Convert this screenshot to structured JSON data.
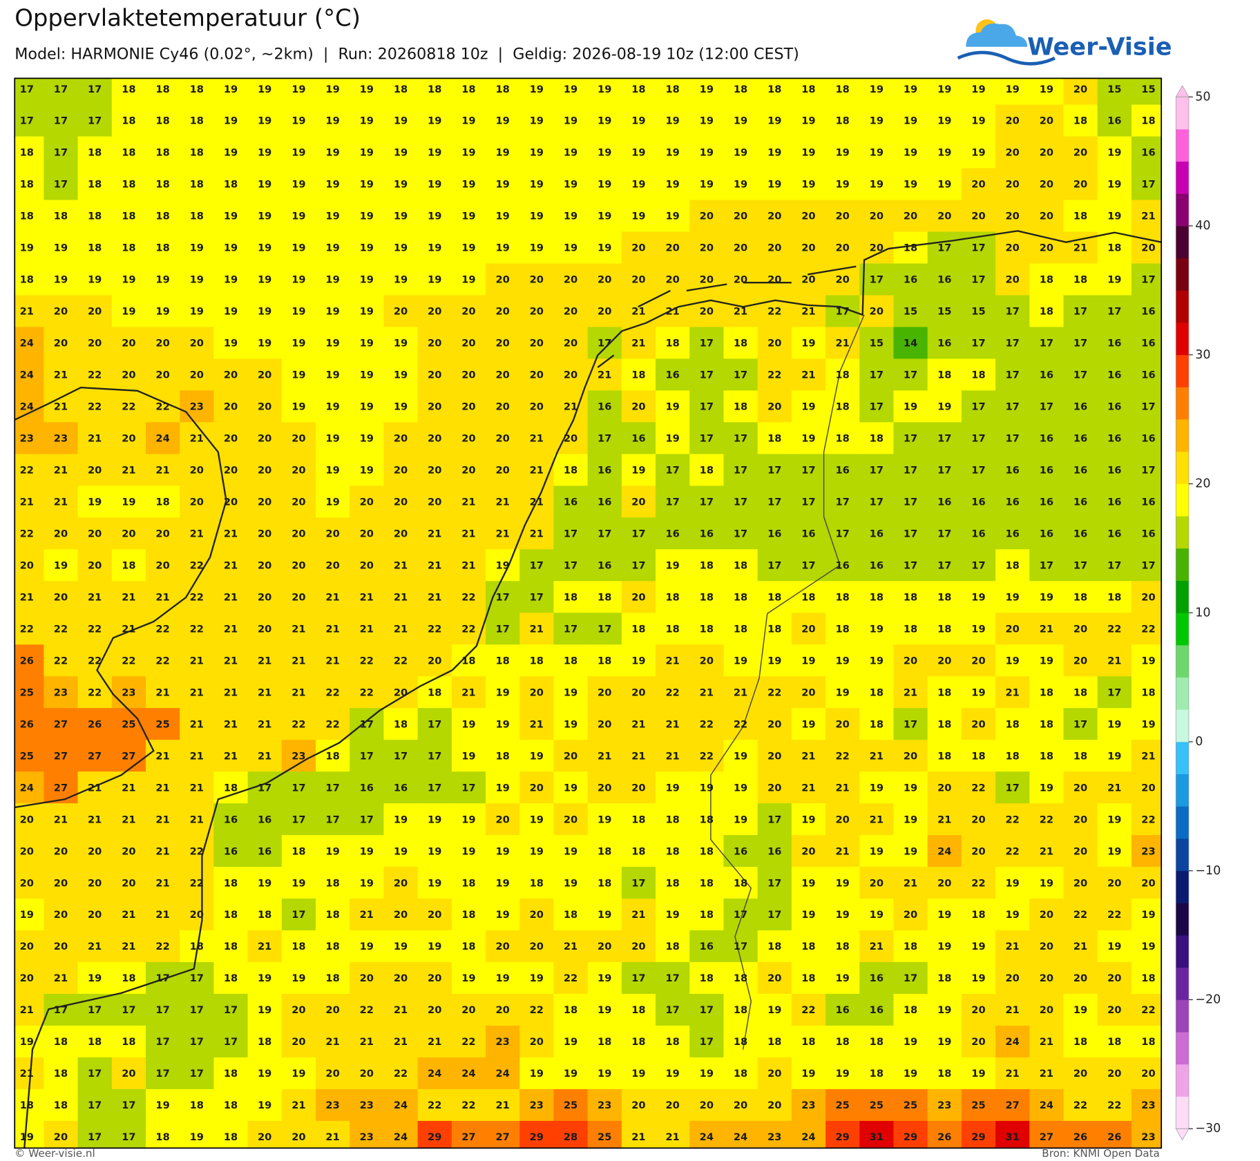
{
  "header": {
    "title": "Oppervlaktetemperatuur (°C)",
    "subtitle": "Model: HARMONIE Cy46 (0.02°, ~2km)  |  Run: 20260818 10z  |  Geldig: 2026-08-19 10z (12:00 CEST)",
    "logo": "Weer-Visie"
  },
  "footer": {
    "left": "© Weer-visie.nl",
    "right": "Bron: KNMI Open Data"
  },
  "colorbar": {
    "range": [
      -30,
      50
    ],
    "ticks": [
      50,
      40,
      30,
      20,
      10,
      0,
      {
        "value": -10,
        "label": "−10"
      },
      {
        "value": -20,
        "label": "−20"
      },
      {
        "value": -30,
        "label": "−30"
      }
    ],
    "colors": [
      "#fcdcf6",
      "#f0a4e8",
      "#cc6cd4",
      "#9c44b8",
      "#6a24a0",
      "#3a1080",
      "#1a0648",
      "#0a1a70",
      "#0a44a0",
      "#0a6cc4",
      "#1a9ae0",
      "#38c0f8",
      "#c8f8e0",
      "#a0ecb0",
      "#6cd86c",
      "#00c800",
      "#00a000",
      "#48b400",
      "#b4d800",
      "#ffff00",
      "#ffe000",
      "#ffb400",
      "#ff8000",
      "#ff4000",
      "#e00000",
      "#b00000",
      "#780010",
      "#4a0030",
      "#8a0070",
      "#c800b4",
      "#ff60dc",
      "#ffc0ec"
    ]
  },
  "grid": {
    "rows": [
      [
        17,
        17,
        17,
        18,
        18,
        18,
        19,
        19,
        19,
        19,
        19,
        18,
        18,
        18,
        18,
        19,
        19,
        19,
        18,
        18,
        19,
        18,
        18,
        18,
        18,
        19,
        19,
        19,
        19,
        19,
        19,
        20,
        15,
        15
      ],
      [
        17,
        17,
        17,
        18,
        18,
        18,
        19,
        19,
        19,
        19,
        19,
        19,
        19,
        19,
        19,
        19,
        19,
        19,
        19,
        19,
        19,
        19,
        19,
        19,
        18,
        19,
        19,
        19,
        19,
        20,
        20,
        18,
        16,
        18
      ],
      [
        18,
        17,
        18,
        18,
        18,
        18,
        19,
        19,
        19,
        19,
        19,
        19,
        19,
        19,
        19,
        19,
        19,
        19,
        19,
        19,
        19,
        19,
        19,
        19,
        19,
        19,
        19,
        19,
        19,
        20,
        20,
        20,
        19,
        16
      ],
      [
        18,
        17,
        18,
        18,
        18,
        18,
        18,
        19,
        19,
        19,
        19,
        19,
        19,
        19,
        19,
        19,
        19,
        19,
        19,
        19,
        19,
        19,
        19,
        19,
        19,
        19,
        19,
        19,
        20,
        20,
        20,
        20,
        19,
        17
      ],
      [
        18,
        18,
        18,
        18,
        18,
        18,
        19,
        19,
        19,
        19,
        19,
        19,
        19,
        19,
        19,
        19,
        19,
        19,
        19,
        19,
        20,
        20,
        20,
        20,
        20,
        20,
        20,
        20,
        20,
        20,
        20,
        18,
        19,
        21
      ],
      [
        19,
        19,
        18,
        18,
        18,
        19,
        19,
        19,
        19,
        19,
        19,
        19,
        19,
        19,
        19,
        19,
        19,
        19,
        20,
        20,
        20,
        20,
        20,
        20,
        20,
        20,
        18,
        17,
        17,
        20,
        20,
        21,
        18,
        20
      ],
      [
        18,
        19,
        19,
        19,
        19,
        19,
        19,
        19,
        19,
        19,
        19,
        19,
        19,
        19,
        20,
        20,
        20,
        20,
        20,
        20,
        20,
        20,
        20,
        20,
        20,
        17,
        16,
        16,
        17,
        20,
        18,
        18,
        19,
        17
      ],
      [
        21,
        20,
        20,
        19,
        19,
        19,
        19,
        19,
        19,
        19,
        19,
        20,
        20,
        20,
        20,
        20,
        20,
        20,
        21,
        21,
        20,
        21,
        22,
        21,
        17,
        20,
        15,
        15,
        15,
        17,
        18,
        17,
        17,
        16
      ],
      [
        24,
        20,
        20,
        20,
        20,
        20,
        19,
        19,
        19,
        19,
        19,
        19,
        20,
        20,
        20,
        20,
        20,
        17,
        21,
        18,
        17,
        18,
        20,
        19,
        21,
        15,
        14,
        16,
        17,
        17,
        17,
        17,
        16,
        16
      ],
      [
        24,
        21,
        22,
        20,
        20,
        20,
        20,
        20,
        19,
        19,
        19,
        19,
        20,
        20,
        20,
        20,
        20,
        21,
        18,
        16,
        17,
        17,
        22,
        21,
        18,
        17,
        17,
        18,
        18,
        17,
        16,
        17,
        16,
        16
      ],
      [
        24,
        21,
        22,
        22,
        22,
        23,
        20,
        20,
        19,
        19,
        19,
        19,
        20,
        20,
        20,
        20,
        21,
        16,
        20,
        19,
        17,
        18,
        20,
        19,
        18,
        17,
        19,
        19,
        17,
        17,
        17,
        16,
        16,
        17
      ],
      [
        23,
        23,
        21,
        20,
        24,
        21,
        20,
        20,
        20,
        19,
        19,
        20,
        20,
        20,
        20,
        21,
        20,
        17,
        16,
        19,
        17,
        17,
        18,
        19,
        18,
        18,
        17,
        17,
        17,
        17,
        16,
        16,
        16,
        16
      ],
      [
        22,
        21,
        20,
        21,
        21,
        20,
        20,
        20,
        20,
        19,
        19,
        20,
        20,
        20,
        20,
        21,
        18,
        16,
        19,
        17,
        18,
        17,
        17,
        17,
        16,
        17,
        17,
        17,
        17,
        16,
        16,
        16,
        16,
        17
      ],
      [
        21,
        21,
        19,
        19,
        18,
        20,
        20,
        20,
        20,
        19,
        20,
        20,
        20,
        21,
        21,
        21,
        16,
        16,
        20,
        17,
        17,
        17,
        17,
        17,
        17,
        17,
        17,
        16,
        16,
        16,
        16,
        16,
        16,
        16
      ],
      [
        22,
        20,
        20,
        20,
        20,
        21,
        21,
        20,
        20,
        20,
        20,
        20,
        21,
        21,
        21,
        21,
        17,
        17,
        17,
        16,
        16,
        17,
        16,
        16,
        17,
        16,
        17,
        17,
        16,
        16,
        16,
        16,
        16,
        16
      ],
      [
        20,
        19,
        20,
        18,
        20,
        22,
        21,
        20,
        20,
        20,
        20,
        21,
        21,
        21,
        19,
        17,
        17,
        16,
        17,
        19,
        18,
        18,
        17,
        17,
        16,
        16,
        17,
        17,
        17,
        18,
        17,
        17,
        17,
        17
      ],
      [
        21,
        20,
        21,
        21,
        21,
        22,
        21,
        20,
        20,
        21,
        21,
        21,
        21,
        22,
        17,
        17,
        18,
        18,
        20,
        18,
        18,
        18,
        18,
        18,
        18,
        18,
        18,
        18,
        19,
        19,
        19,
        18,
        18,
        20
      ],
      [
        22,
        22,
        22,
        21,
        22,
        22,
        21,
        20,
        21,
        21,
        21,
        21,
        22,
        22,
        17,
        21,
        17,
        17,
        18,
        18,
        18,
        18,
        18,
        20,
        18,
        19,
        18,
        18,
        19,
        20,
        21,
        20,
        22,
        22
      ],
      [
        26,
        22,
        22,
        22,
        22,
        21,
        21,
        21,
        21,
        21,
        22,
        22,
        20,
        18,
        18,
        18,
        18,
        18,
        19,
        21,
        20,
        19,
        19,
        19,
        19,
        19,
        20,
        20,
        20,
        19,
        19,
        20,
        21,
        19
      ],
      [
        25,
        23,
        22,
        23,
        21,
        21,
        21,
        21,
        21,
        22,
        22,
        20,
        18,
        21,
        19,
        20,
        19,
        20,
        20,
        22,
        21,
        21,
        22,
        20,
        19,
        18,
        21,
        18,
        19,
        21,
        18,
        18,
        17,
        18
      ],
      [
        26,
        27,
        26,
        25,
        25,
        21,
        21,
        21,
        22,
        22,
        17,
        18,
        17,
        19,
        19,
        21,
        19,
        20,
        21,
        21,
        22,
        22,
        20,
        19,
        20,
        18,
        17,
        18,
        20,
        18,
        18,
        17,
        19,
        19
      ],
      [
        25,
        27,
        27,
        27,
        21,
        21,
        21,
        21,
        23,
        18,
        17,
        17,
        17,
        19,
        18,
        19,
        20,
        21,
        21,
        21,
        22,
        19,
        20,
        21,
        22,
        21,
        20,
        18,
        18,
        18,
        18,
        18,
        19,
        21
      ],
      [
        24,
        27,
        21,
        21,
        21,
        21,
        18,
        17,
        17,
        17,
        16,
        16,
        17,
        17,
        19,
        20,
        19,
        20,
        20,
        19,
        19,
        19,
        20,
        21,
        21,
        19,
        19,
        20,
        22,
        17,
        19,
        20,
        21,
        20
      ],
      [
        20,
        21,
        21,
        21,
        21,
        21,
        16,
        16,
        17,
        17,
        17,
        19,
        19,
        19,
        20,
        19,
        20,
        19,
        18,
        18,
        18,
        19,
        17,
        19,
        20,
        21,
        19,
        21,
        20,
        22,
        22,
        20,
        19,
        22
      ],
      [
        20,
        20,
        20,
        20,
        21,
        22,
        16,
        16,
        18,
        19,
        19,
        19,
        19,
        19,
        19,
        19,
        19,
        18,
        18,
        18,
        18,
        16,
        16,
        20,
        21,
        19,
        19,
        24,
        20,
        22,
        21,
        20,
        19,
        23
      ],
      [
        20,
        20,
        20,
        20,
        21,
        22,
        18,
        19,
        19,
        18,
        19,
        20,
        19,
        18,
        19,
        18,
        19,
        18,
        17,
        18,
        18,
        18,
        17,
        19,
        19,
        20,
        21,
        20,
        22,
        19,
        19,
        20,
        20,
        20
      ],
      [
        19,
        20,
        20,
        21,
        21,
        20,
        18,
        18,
        17,
        18,
        21,
        20,
        20,
        18,
        19,
        20,
        18,
        19,
        21,
        19,
        18,
        17,
        17,
        19,
        19,
        19,
        20,
        19,
        18,
        19,
        20,
        22,
        22,
        19
      ],
      [
        20,
        20,
        21,
        21,
        22,
        18,
        18,
        21,
        18,
        18,
        19,
        19,
        19,
        18,
        20,
        20,
        21,
        20,
        20,
        18,
        16,
        17,
        18,
        18,
        18,
        21,
        18,
        19,
        19,
        21,
        20,
        21,
        19,
        19
      ],
      [
        20,
        21,
        19,
        18,
        17,
        17,
        18,
        19,
        19,
        18,
        20,
        20,
        20,
        19,
        19,
        19,
        22,
        19,
        17,
        17,
        18,
        18,
        20,
        18,
        19,
        16,
        17,
        18,
        19,
        20,
        20,
        20,
        20,
        18
      ],
      [
        21,
        17,
        17,
        17,
        17,
        17,
        17,
        19,
        20,
        20,
        22,
        21,
        20,
        20,
        20,
        22,
        18,
        19,
        18,
        17,
        17,
        18,
        19,
        22,
        16,
        16,
        18,
        19,
        20,
        21,
        20,
        19,
        20,
        22
      ],
      [
        19,
        18,
        18,
        18,
        17,
        17,
        17,
        18,
        20,
        21,
        21,
        21,
        21,
        22,
        23,
        20,
        19,
        18,
        18,
        18,
        17,
        18,
        18,
        18,
        18,
        18,
        19,
        19,
        20,
        24,
        21,
        18,
        18,
        18
      ],
      [
        21,
        18,
        17,
        20,
        17,
        17,
        18,
        19,
        19,
        20,
        20,
        22,
        24,
        24,
        24,
        19,
        19,
        19,
        19,
        19,
        19,
        18,
        20,
        19,
        19,
        18,
        19,
        18,
        19,
        21,
        21,
        20,
        20,
        20
      ],
      [
        18,
        18,
        17,
        17,
        19,
        18,
        18,
        19,
        21,
        23,
        23,
        24,
        22,
        22,
        21,
        23,
        25,
        23,
        20,
        20,
        20,
        20,
        20,
        23,
        25,
        25,
        25,
        23,
        25,
        27,
        24,
        22,
        22,
        23
      ],
      [
        19,
        20,
        17,
        17,
        18,
        19,
        18,
        20,
        20,
        21,
        23,
        24,
        29,
        27,
        27,
        29,
        28,
        25,
        21,
        21,
        24,
        24,
        23,
        24,
        29,
        31,
        29,
        26,
        29,
        31,
        27,
        26,
        26,
        23
      ]
    ]
  }
}
